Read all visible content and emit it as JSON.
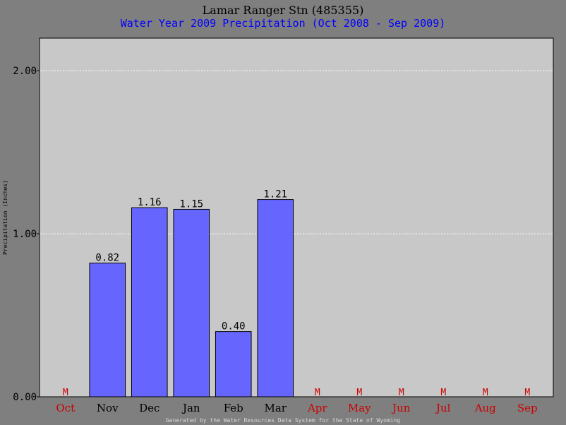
{
  "chart_data": {
    "type": "bar",
    "title": "Lamar Ranger Stn (485355)",
    "subtitle": "Water Year 2009 Precipitation (Oct 2008 - Sep 2009)",
    "ylabel": "Precipitation (Inches)",
    "categories": [
      "Oct",
      "Nov",
      "Dec",
      "Jan",
      "Feb",
      "Mar",
      "Apr",
      "May",
      "Jun",
      "Jul",
      "Aug",
      "Sep"
    ],
    "values": [
      null,
      0.82,
      1.16,
      1.15,
      0.4,
      1.21,
      null,
      null,
      null,
      null,
      null,
      null
    ],
    "value_labels": [
      "M",
      "0.82",
      "1.16",
      "1.15",
      "0.40",
      "1.21",
      "M",
      "M",
      "M",
      "M",
      "M",
      "M"
    ],
    "ylim": [
      0,
      2.0
    ],
    "yticks": [
      "0.00",
      "1.00",
      "2.00"
    ],
    "ytick_values": [
      0,
      1,
      2
    ],
    "grid": true,
    "footer": "Generated by the Water Resources Data System for the State of Wyoming"
  },
  "colors": {
    "background": "#7f7f7f",
    "plot": "#c8c8c8",
    "bar": "#6666ff",
    "missing": "#cc0000",
    "subtitle": "#0000ff",
    "grid": "#ffffff",
    "footer": "#d8d8d8"
  }
}
